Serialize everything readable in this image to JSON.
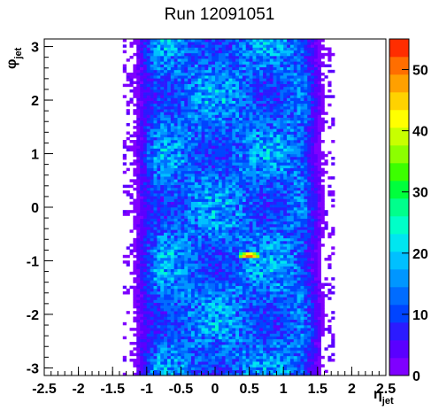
{
  "chart_data": {
    "type": "heatmap",
    "title": "Run 12091051",
    "xlabel": {
      "main": "η",
      "sub": "jet"
    },
    "ylabel": {
      "main": "φ",
      "sub": "jet"
    },
    "xlim": [
      -2.5,
      2.5
    ],
    "ylim": [
      -3.1416,
      3.1416
    ],
    "x_ticks": [
      "-2.5",
      "-2",
      "-1.5",
      "-1",
      "-0.5",
      "0",
      "0.5",
      "1",
      "1.5",
      "2",
      "2.5"
    ],
    "x_tick_values": [
      -2.5,
      -2,
      -1.5,
      -1,
      -0.5,
      0,
      0.5,
      1,
      1.5,
      2,
      2.5
    ],
    "y_ticks": [
      "3",
      "2",
      "1",
      "0",
      "-1",
      "-2",
      "-3"
    ],
    "y_tick_values": [
      3,
      2,
      1,
      0,
      -1,
      -2,
      -3
    ],
    "z_range": [
      0,
      55
    ],
    "z_ticks": [
      "50",
      "40",
      "30",
      "20",
      "10",
      "0"
    ],
    "z_tick_values": [
      50,
      40,
      30,
      20,
      10,
      0
    ],
    "bins": {
      "nx": 100,
      "ny": 120
    },
    "occupied_eta_range": [
      -1.2,
      1.6
    ],
    "hotspot": {
      "eta": 0.5,
      "phi": -0.9,
      "counts": 54
    },
    "typical_counts": 13,
    "colors": {
      "palette": [
        "#7f00ff",
        "#5a00ff",
        "#2b1bff",
        "#0044ff",
        "#006cff",
        "#0096ff",
        "#00c0ff",
        "#00e6f0",
        "#00ffc8",
        "#00ff8c",
        "#00ff3c",
        "#3cff00",
        "#8cff00",
        "#c8ff00",
        "#ffff00",
        "#ffd200",
        "#ffa000",
        "#ff6e00",
        "#ff2d00"
      ]
    }
  }
}
